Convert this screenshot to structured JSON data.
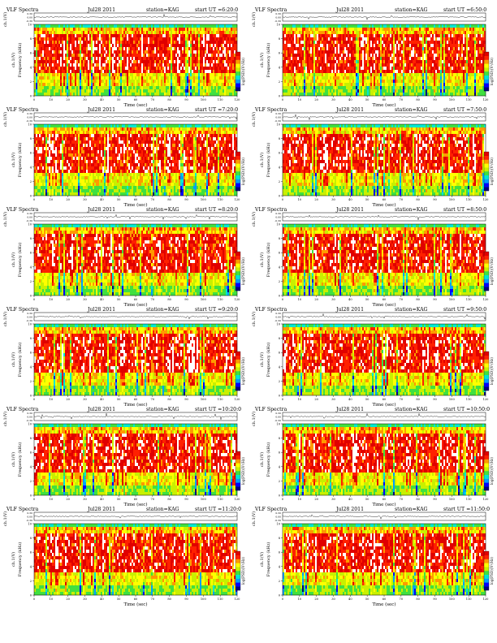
{
  "common": {
    "title": "VLF Spectra",
    "date": "Jul28 2011",
    "station": "station=KAG",
    "ch_label": "ch.1(V)",
    "ch_ticks": [
      "0.30",
      "0.00",
      "-0.30"
    ],
    "freq_label": "Frequency (kHz)",
    "freq_ticks": [
      "0",
      "2",
      "4",
      "6",
      "8",
      "10"
    ],
    "time_label": "Time (sec)",
    "time_ticks": [
      "0",
      "10",
      "20",
      "30",
      "40",
      "50",
      "60",
      "70",
      "80",
      "90",
      "100",
      "110",
      "120"
    ],
    "cbar_label": "log(PSD)(V²/Hz)"
  },
  "colors": {
    "background": "#ffffff",
    "spectrum_scale": [
      "#000080",
      "#0000ff",
      "#00a0ff",
      "#00e8d0",
      "#40e040",
      "#c8f000",
      "#ffff00",
      "#ff9a00",
      "#ff2000",
      "#e00000",
      "#ffffff"
    ]
  },
  "panels": [
    {
      "start_ut": "start UT =6:20:0"
    },
    {
      "start_ut": "start UT =6:50:0"
    },
    {
      "start_ut": "start UT =7:20:0"
    },
    {
      "start_ut": "start UT =7:50:0"
    },
    {
      "start_ut": "start UT =8:20:0"
    },
    {
      "start_ut": "start UT =8:50:0"
    },
    {
      "start_ut": "start UT =9:20:0"
    },
    {
      "start_ut": "start UT =9:50:0"
    },
    {
      "start_ut": "start UT =10:20:0"
    },
    {
      "start_ut": "start UT =10:50:0"
    },
    {
      "start_ut": "start UT =11:20:0"
    },
    {
      "start_ut": "start UT =11:50:0"
    }
  ],
  "chart_data": {
    "type": "heatmap",
    "title": "VLF Spectra",
    "xlabel": "Time (sec)",
    "ylabel": "Frequency (kHz)",
    "xlim": [
      0,
      120
    ],
    "ylim": [
      0,
      10
    ],
    "waveform_ylim": [
      -0.3,
      0.3
    ],
    "grid": false,
    "colorbar_label": "log(PSD)(V²/Hz)",
    "description_of_values": "spectral power dominated by high values (red) between ~3 and ~9 kHz, moderate (yellow-green) below ~3 kHz, cyan band near 9.5 kHz"
  }
}
